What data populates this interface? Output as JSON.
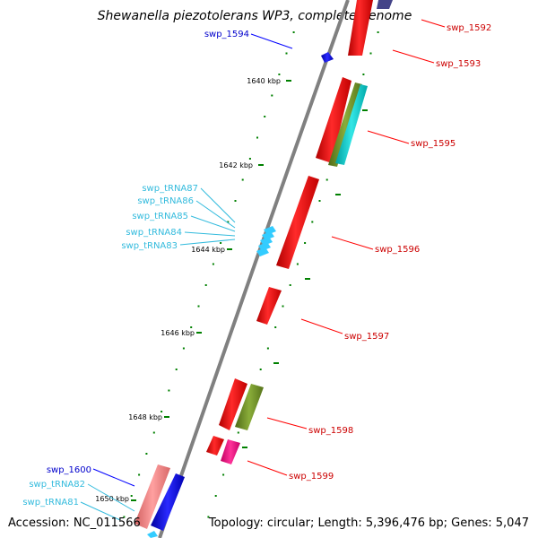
{
  "title": "Shewanella piezotolerans WP3, complete genome",
  "accession": "Accession: NC_011566",
  "summary": "Topology: circular; Length: 5,396,476 bp; Genes: 5,047",
  "ticks": [
    "1640 kbp",
    "1642 kbp",
    "1644 kbp",
    "1646 kbp",
    "1648 kbp",
    "1650 kbp"
  ],
  "colors": {
    "backbone": "#808080",
    "cds_forward": "#0000ff",
    "cds_reverse": "#ff0000",
    "trna": "#33ccff",
    "olive": "#6b8e23",
    "cyan": "#00cccc",
    "magenta": "#ff0080",
    "pink": "#f08080",
    "tick": "#008000",
    "label_red": "#cc0000",
    "label_blue": "#0000cc",
    "label_cyan": "#33bbdd"
  },
  "features": {
    "top_reverse": {
      "name": "swp_1592"
    },
    "reverse_1593": {
      "name": "swp_1593"
    },
    "forward_1594": {
      "name": "swp_1594"
    },
    "reverse_1595": {
      "name": "swp_1595"
    },
    "reverse_1596": {
      "name": "swp_1596"
    },
    "reverse_1597": {
      "name": "swp_1597"
    },
    "reverse_1598": {
      "name": "swp_1598"
    },
    "reverse_1599": {
      "name": "swp_1599"
    },
    "forward_1600": {
      "name": "swp_1600"
    },
    "trna87": {
      "name": "swp_tRNA87"
    },
    "trna86": {
      "name": "swp_tRNA86"
    },
    "trna85": {
      "name": "swp_tRNA85"
    },
    "trna84": {
      "name": "swp_tRNA84"
    },
    "trna83": {
      "name": "swp_tRNA83"
    },
    "trna82": {
      "name": "swp_tRNA82"
    },
    "trna81": {
      "name": "swp_tRNA81"
    }
  }
}
